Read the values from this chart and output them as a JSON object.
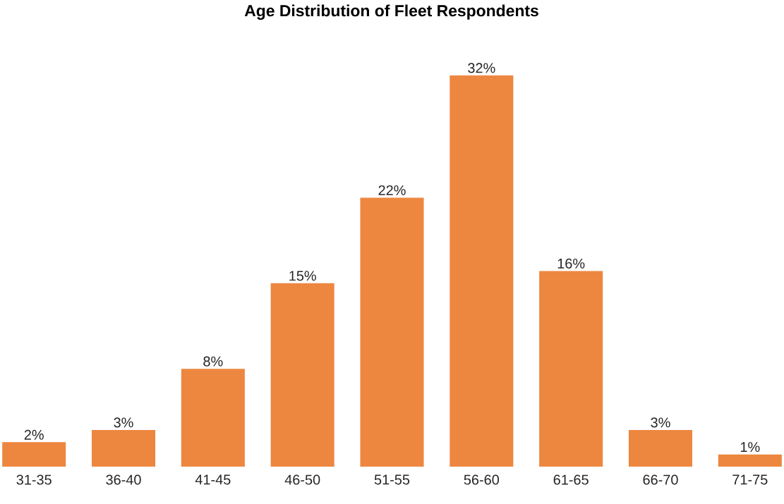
{
  "chart_data": {
    "type": "bar",
    "title": "Age Distribution of Fleet Respondents",
    "categories": [
      "31-35",
      "36-40",
      "41-45",
      "46-50",
      "51-55",
      "56-60",
      "61-65",
      "66-70",
      "71-75"
    ],
    "values": [
      2,
      3,
      8,
      15,
      22,
      32,
      16,
      3,
      1
    ],
    "value_labels": [
      "2%",
      "3%",
      "8%",
      "15%",
      "22%",
      "32%",
      "16%",
      "3%",
      "1%"
    ],
    "color": "#ed8740"
  }
}
